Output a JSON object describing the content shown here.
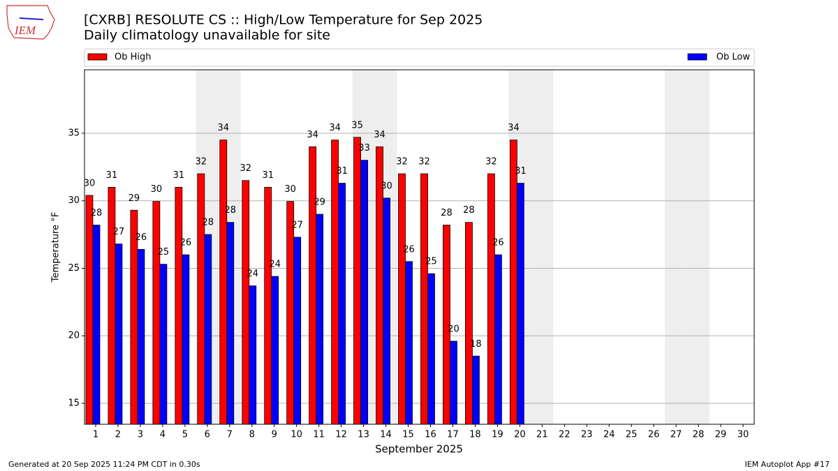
{
  "logo_text": "IEM",
  "footer_left": "Generated at 20 Sep 2025 11:24 PM CDT in 0.30s",
  "footer_right": "IEM Autoplot App #17",
  "chart_data": {
    "type": "bar",
    "title": "[CXRB] RESOLUTE CS :: High/Low Temperature for Sep 2025",
    "subtitle": "Daily climatology unavailable for site",
    "x_label": "September 2025",
    "y_label": "Temperature °F",
    "x": [
      1,
      2,
      3,
      4,
      5,
      6,
      7,
      8,
      9,
      10,
      11,
      12,
      13,
      14,
      15,
      16,
      17,
      18,
      19,
      20,
      21,
      22,
      23,
      24,
      25,
      26,
      27,
      28,
      29,
      30
    ],
    "xlim": [
      0.5,
      30.5
    ],
    "ylim": [
      13.45,
      39.7
    ],
    "yticks": [
      15,
      20,
      25,
      30,
      35
    ],
    "grid": true,
    "weekends": [
      6,
      7,
      13,
      14,
      20,
      21,
      27,
      28
    ],
    "series": [
      {
        "name": "Ob High",
        "color": "#ff0000",
        "values": [
          30.4,
          31.0,
          29.3,
          29.95,
          31.0,
          32.0,
          34.5,
          31.5,
          31.0,
          29.95,
          34.0,
          34.5,
          34.7,
          34.0,
          32.0,
          32.0,
          28.2,
          28.4,
          32.0,
          34.5,
          null,
          null,
          null,
          null,
          null,
          null,
          null,
          null,
          null,
          null
        ],
        "value_labels": [
          "30",
          "31",
          "29",
          "30",
          "31",
          "32",
          "34",
          "32",
          "31",
          "30",
          "34",
          "34",
          "35",
          "34",
          "32",
          "32",
          "28",
          "28",
          "32",
          "34",
          null,
          null,
          null,
          null,
          null,
          null,
          null,
          null,
          null,
          null
        ]
      },
      {
        "name": "Ob Low",
        "color": "#0000ff",
        "values": [
          28.2,
          26.8,
          26.4,
          25.3,
          26.0,
          27.5,
          28.4,
          23.7,
          24.4,
          27.3,
          29.0,
          31.3,
          33.0,
          30.2,
          25.5,
          24.6,
          19.6,
          18.5,
          26.0,
          31.3,
          null,
          null,
          null,
          null,
          null,
          null,
          null,
          null,
          null,
          null
        ],
        "value_labels": [
          "28",
          "27",
          "26",
          "25",
          "26",
          "28",
          "28",
          "24",
          "24",
          "27",
          "29",
          "31",
          "33",
          "30",
          "26",
          "25",
          "20",
          "18",
          "26",
          "31",
          null,
          null,
          null,
          null,
          null,
          null,
          null,
          null,
          null,
          null
        ]
      }
    ]
  }
}
